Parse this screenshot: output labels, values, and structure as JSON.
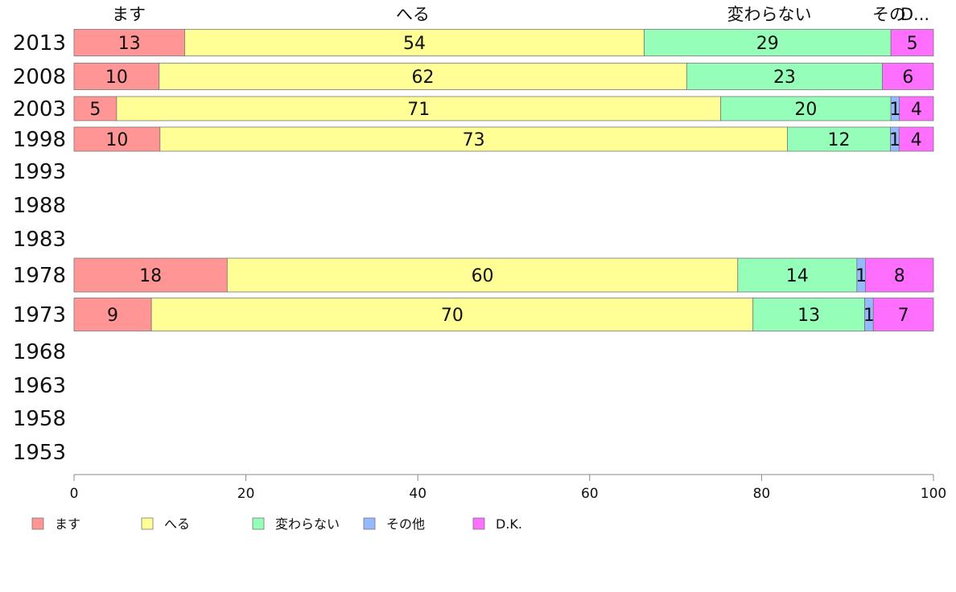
{
  "chart_data": {
    "type": "bar",
    "orientation": "horizontal",
    "stacked": true,
    "categories": [
      "2013",
      "2008",
      "2003",
      "1998",
      "1993",
      "1988",
      "1983",
      "1978",
      "1973",
      "1968",
      "1963",
      "1958",
      "1953"
    ],
    "series": [
      {
        "name": "ます",
        "color": "#ff9595",
        "values": [
          13,
          10,
          5,
          10,
          null,
          null,
          null,
          18,
          9,
          null,
          null,
          null,
          null
        ]
      },
      {
        "name": "へる",
        "color": "#ffff95",
        "values": [
          54,
          62,
          71,
          73,
          null,
          null,
          null,
          60,
          70,
          null,
          null,
          null,
          null
        ]
      },
      {
        "name": "変わらない",
        "color": "#95ffb9",
        "values": [
          29,
          23,
          20,
          12,
          null,
          null,
          null,
          14,
          13,
          null,
          null,
          null,
          null
        ]
      },
      {
        "name": "その他",
        "color": "#95b9ff",
        "values": [
          0,
          0,
          1,
          1,
          null,
          null,
          null,
          1,
          1,
          null,
          null,
          null,
          null
        ]
      },
      {
        "name": "D.K.",
        "color": "#ff6fff",
        "values": [
          5,
          6,
          4,
          4,
          null,
          null,
          null,
          8,
          7,
          null,
          null,
          null,
          null
        ]
      }
    ],
    "top_labels": [
      "ます",
      "へる",
      "変わらない",
      "その",
      "D..."
    ],
    "xlim": [
      0,
      100
    ],
    "xticks": [
      "0",
      "20",
      "40",
      "60",
      "80",
      "100"
    ],
    "grid": false,
    "legend_position": "bottom-left"
  }
}
